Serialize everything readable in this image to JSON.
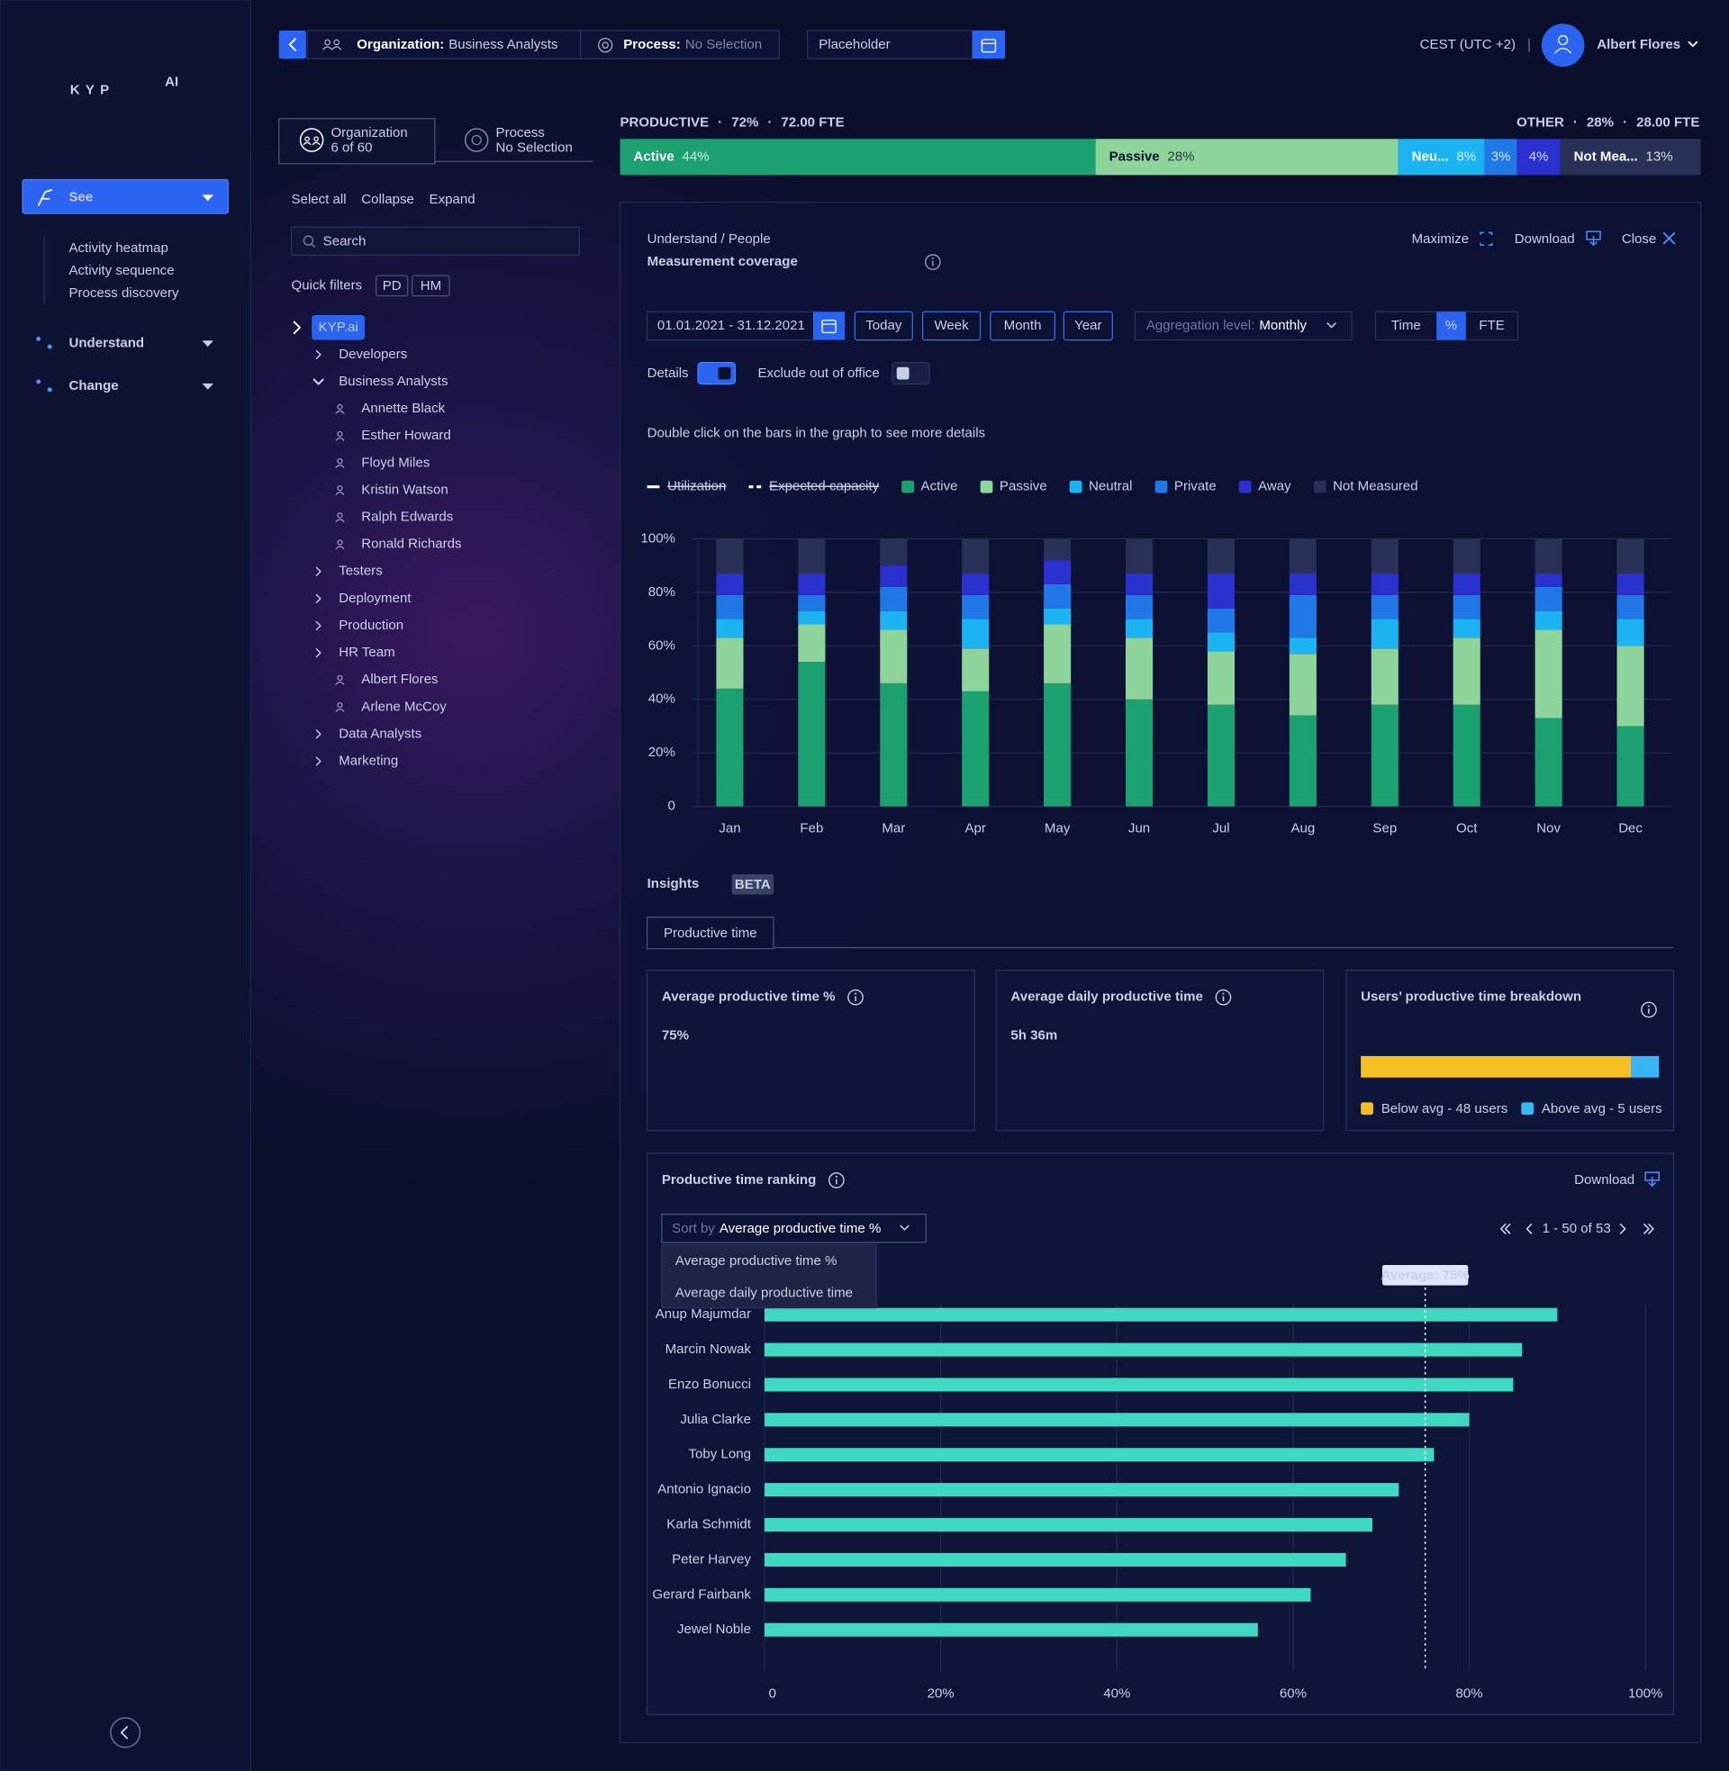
{
  "sidebar": {
    "logo": "KYP",
    "logo_badge": "AI",
    "nav": [
      {
        "label": "See",
        "items": [
          "Activity heatmap",
          "Activity sequence",
          "Process discovery"
        ]
      },
      {
        "label": "Understand"
      },
      {
        "label": "Change"
      }
    ]
  },
  "topbar": {
    "organization": {
      "label": "Organization:",
      "value": "Business Analysts"
    },
    "process": {
      "label": "Process:",
      "value": "No Selection"
    },
    "date_placeholder": "Placeholder",
    "timezone": "CEST (UTC +2)",
    "user": "Albert Flores"
  },
  "filters": {
    "tabs": [
      {
        "title": "Organization",
        "subtitle": "6 of 60"
      },
      {
        "title": "Process",
        "subtitle": "No Selection"
      }
    ],
    "actions": [
      "Select all",
      "Collapse",
      "Expand"
    ],
    "search_placeholder": "Search",
    "quick_filters": {
      "label": "Quick filters",
      "items": [
        "PD",
        "HM"
      ]
    },
    "tree": [
      {
        "label": "KYP.ai",
        "level": 0
      },
      {
        "label": "Developers",
        "level": 1,
        "expanded": false
      },
      {
        "label": "Business Analysts",
        "level": 1,
        "expanded": true
      },
      {
        "label": "Annette Black",
        "level": 2
      },
      {
        "label": "Esther Howard",
        "level": 2
      },
      {
        "label": "Floyd Miles",
        "level": 2
      },
      {
        "label": "Kristin Watson",
        "level": 2
      },
      {
        "label": "Ralph Edwards",
        "level": 2
      },
      {
        "label": "Ronald Richards",
        "level": 2
      },
      {
        "label": "Testers",
        "level": 1,
        "expanded": false
      },
      {
        "label": "Deployment",
        "level": 1,
        "expanded": false
      },
      {
        "label": "Production",
        "level": 1,
        "expanded": false
      },
      {
        "label": "HR Team",
        "level": 1,
        "expanded": false
      },
      {
        "label": "Albert Flores",
        "level": 2
      },
      {
        "label": "Arlene McCoy",
        "level": 2
      },
      {
        "label": "Data Analysts",
        "level": 1,
        "expanded": false
      },
      {
        "label": "Marketing",
        "level": 1,
        "expanded": false
      }
    ]
  },
  "summary": {
    "separator": "·",
    "left": [
      "PRODUCTIVE",
      "72%",
      "72.00 FTE"
    ],
    "right": [
      "OTHER",
      "28%",
      "28.00 FTE"
    ]
  },
  "panel": {
    "breadcrumb": "Understand / People",
    "title": "Measurement coverage",
    "actions": [
      "Maximize",
      "Download",
      "Close"
    ],
    "date_range": "01.01.2021 - 31.12.2021",
    "periods": [
      "Today",
      "Week",
      "Month",
      "Year"
    ],
    "aggregation": {
      "label": "Aggregation level:",
      "value": "Monthly"
    },
    "units": [
      "Time",
      "%",
      "FTE"
    ],
    "units_selected": 1,
    "toggles": [
      {
        "label": "Details",
        "on": true
      },
      {
        "label": "Exclude out of office",
        "on": false
      }
    ],
    "hint": "Double click on the bars in the graph to see more details",
    "inactive_legend": [
      "Utilization",
      "Expected capacity"
    ]
  },
  "insights": {
    "title": "Insights",
    "badge": "BETA",
    "tab": "Productive time",
    "cards": [
      {
        "title": "Average productive time %",
        "value": "75%"
      },
      {
        "title": "Average daily productive time",
        "value": "5h 36m"
      },
      {
        "title": "Users’ productive time breakdown"
      }
    ],
    "ranking": {
      "title": "Productive time ranking",
      "download": "Download",
      "sort_label": "Sort by",
      "sort_value": "Average productive time %",
      "sort_options": [
        "Average productive time %",
        "Average daily productive time"
      ],
      "pagination": "1 - 50 of 53"
    }
  },
  "chart_data": [
    {
      "type": "stacked_column",
      "categories": [
        "Jan",
        "Feb",
        "Mar",
        "Apr",
        "May",
        "Jun",
        "Jul",
        "Aug",
        "Sep",
        "Oct",
        "Nov",
        "Dec"
      ],
      "series": [
        {
          "name": "Active",
          "color": "#1ba070",
          "values": [
            44,
            54,
            46,
            43,
            46,
            40,
            38,
            34,
            38,
            38,
            33,
            30
          ]
        },
        {
          "name": "Passive",
          "color": "#8dd49a",
          "values": [
            19,
            14,
            20,
            16,
            22,
            23,
            20,
            23,
            21,
            25,
            33,
            30
          ]
        },
        {
          "name": "Neutral",
          "color": "#1cb3f2",
          "values": [
            7,
            5,
            7,
            11,
            6,
            7,
            7,
            6,
            11,
            7,
            7,
            10
          ]
        },
        {
          "name": "Private",
          "color": "#1f78e6",
          "values": [
            9,
            6,
            9,
            9,
            9,
            9,
            9,
            16,
            9,
            9,
            9,
            9
          ]
        },
        {
          "name": "Away",
          "color": "#2b31cf",
          "values": [
            8,
            8,
            8,
            8,
            9,
            8,
            13,
            8,
            8,
            8,
            5,
            8
          ]
        },
        {
          "name": "Not Measured",
          "color": "#2a3158",
          "values": [
            13,
            13,
            10,
            13,
            8,
            13,
            13,
            13,
            13,
            13,
            13,
            13
          ]
        }
      ],
      "ylim": [
        0,
        100
      ],
      "yticks": [
        0,
        {
          "value": 20,
          "label": "20%"
        },
        {
          "value": 40,
          "label": "40%"
        },
        {
          "value": 60,
          "label": "60%"
        },
        {
          "value": 80,
          "label": "80%"
        },
        {
          "value": 100,
          "label": "100%"
        }
      ],
      "grid": true,
      "legend": "top-left"
    },
    {
      "type": "stacked_bar",
      "series": [
        {
          "name": "Active",
          "color": "#1ba070",
          "values": [
            44
          ],
          "value_labels": [
            "44%"
          ]
        },
        {
          "name": "Passive",
          "color": "#8dd49a",
          "values": [
            28
          ],
          "value_labels": [
            "28%"
          ]
        },
        {
          "name": "Neu...",
          "color": "#1cb3f2",
          "values": [
            8
          ],
          "value_labels": [
            "8%"
          ]
        },
        {
          "name": null,
          "color": "#1f78e6",
          "values": [
            3
          ],
          "value_labels": [
            "3%"
          ]
        },
        {
          "name": null,
          "color": "#2b31cf",
          "values": [
            4
          ],
          "value_labels": [
            "4%"
          ]
        },
        {
          "name": "Not Mea...",
          "color": "#2a3158",
          "values": [
            13
          ],
          "value_labels": [
            "13%"
          ]
        }
      ]
    },
    {
      "type": "stacked_bar",
      "series": [
        {
          "name": "Below avg - 48 users",
          "color": "#f6bf26",
          "values": [
            48
          ]
        },
        {
          "name": "Above avg - 5 users",
          "color": "#39b6f5",
          "values": [
            5
          ]
        }
      ],
      "legend": "bottom"
    },
    {
      "type": "bar",
      "orientation": "horizontal",
      "categories": [
        "Anup Majumdar",
        "Marcin Nowak",
        "Enzo Bonucci",
        "Julia Clarke",
        "Toby Long",
        "Antonio Ignacio",
        "Karla Schmidt",
        "Peter Harvey",
        "Gerard Fairbank",
        "Jewel Noble"
      ],
      "values": [
        90,
        86,
        85,
        80,
        76,
        72,
        69,
        66,
        62,
        56
      ],
      "color": "#3fd8c3",
      "xlim": [
        0,
        100
      ],
      "xticks": [
        0,
        {
          "value": 20,
          "label": "20%"
        },
        {
          "value": 40,
          "label": "40%"
        },
        {
          "value": 60,
          "label": "60%"
        },
        {
          "value": 80,
          "label": "80%"
        },
        {
          "value": 100,
          "label": "100%"
        }
      ],
      "grid": true,
      "average": {
        "value": 75,
        "label": "Average: 75%"
      }
    }
  ]
}
